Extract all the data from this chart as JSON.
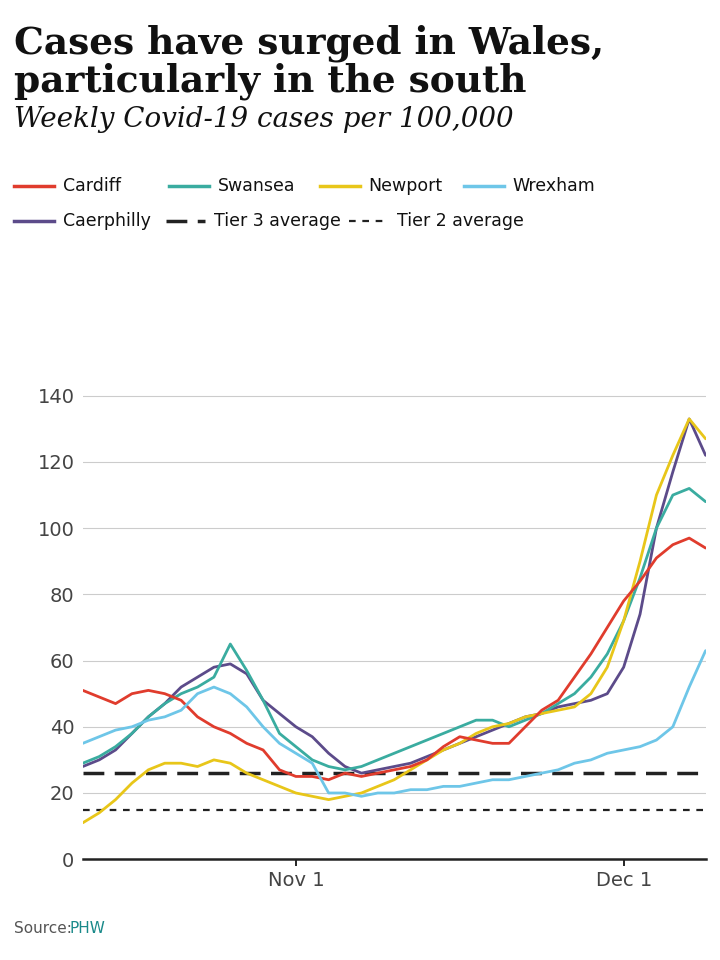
{
  "title_line1": "Cases have surged in Wales,",
  "title_line2": "particularly in the south",
  "subtitle": "Weekly Covid-19 cases per 100,000",
  "bg_color": "#ffffff",
  "tier3_value": 26,
  "tier2_value": 15,
  "colors": {
    "Cardiff": "#e03c2d",
    "Swansea": "#3aaca0",
    "Newport": "#e8c619",
    "Wrexham": "#6ec6e8",
    "Caerphilly": "#5c4b8a"
  },
  "ylim": [
    0,
    145
  ],
  "yticks": [
    0,
    20,
    40,
    60,
    80,
    100,
    120,
    140
  ],
  "nov1_idx": 13,
  "dec1_idx": 33,
  "cardiff": [
    51,
    49,
    47,
    50,
    51,
    50,
    48,
    43,
    40,
    38,
    35,
    33,
    27,
    25,
    25,
    24,
    26,
    25,
    26,
    27,
    28,
    30,
    34,
    37,
    36,
    35,
    35,
    40,
    45,
    48,
    55,
    62,
    70,
    78,
    84,
    91,
    95,
    97,
    94
  ],
  "swansea": [
    29,
    31,
    34,
    38,
    43,
    47,
    50,
    52,
    55,
    65,
    57,
    48,
    38,
    34,
    30,
    28,
    27,
    28,
    30,
    32,
    34,
    36,
    38,
    40,
    42,
    42,
    40,
    42,
    44,
    47,
    50,
    55,
    62,
    72,
    85,
    100,
    110,
    112,
    108
  ],
  "newport": [
    11,
    14,
    18,
    23,
    27,
    29,
    29,
    28,
    30,
    29,
    26,
    24,
    22,
    20,
    19,
    18,
    19,
    20,
    22,
    24,
    27,
    30,
    33,
    35,
    38,
    40,
    41,
    43,
    44,
    45,
    46,
    50,
    58,
    72,
    90,
    110,
    122,
    133,
    127
  ],
  "wrexham": [
    35,
    37,
    39,
    40,
    42,
    43,
    45,
    50,
    52,
    50,
    46,
    40,
    35,
    32,
    29,
    20,
    20,
    19,
    20,
    20,
    21,
    21,
    22,
    22,
    23,
    24,
    24,
    25,
    26,
    27,
    29,
    30,
    32,
    33,
    34,
    36,
    40,
    52,
    63
  ],
  "caerphilly": [
    28,
    30,
    33,
    38,
    43,
    47,
    52,
    55,
    58,
    59,
    56,
    48,
    44,
    40,
    37,
    32,
    28,
    26,
    27,
    28,
    29,
    31,
    33,
    35,
    37,
    39,
    41,
    43,
    44,
    46,
    47,
    48,
    50,
    58,
    74,
    100,
    117,
    133,
    122
  ]
}
